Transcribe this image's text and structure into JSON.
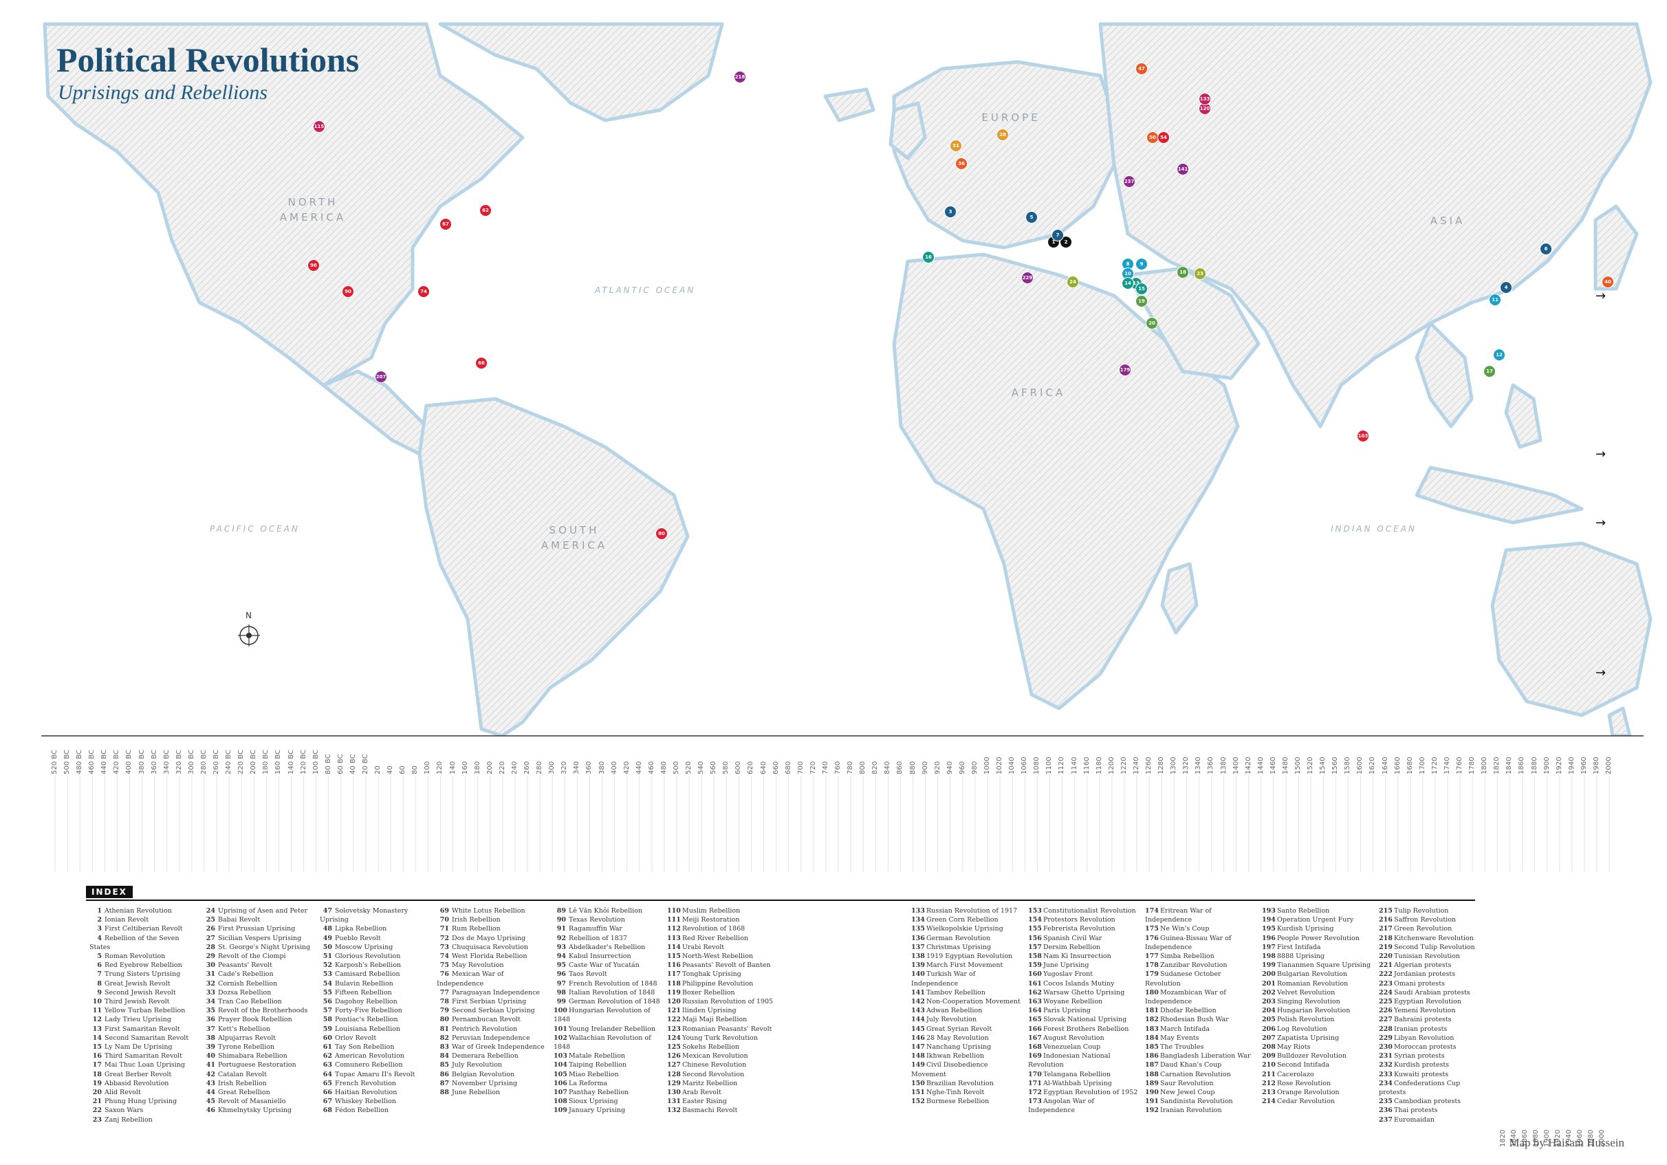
{
  "title": "Political Revolutions",
  "subtitle": "Uprisings and Rebellions",
  "regions": {
    "north_america": "NORTH AMERICA",
    "south_america": "SOUTH AMERICA",
    "europe": "EUROPE",
    "africa": "AFRICA",
    "asia": "ASIA"
  },
  "oceans": {
    "atlantic": "ATLANTIC OCEAN",
    "pacific": "PACIFIC OCEAN",
    "indian": "INDIAN OCEAN"
  },
  "compass_label": "N",
  "index_heading": "INDEX",
  "credit": "Map by Haisam Hussein",
  "era_colors": [
    "#111111",
    "#1b5e8a",
    "#1aa0c7",
    "#159a8c",
    "#5aa043",
    "#97ad2b",
    "#e59a2e",
    "#ea5a24",
    "#de1f33",
    "#c7205d",
    "#8e2a8f"
  ],
  "timeline_ticks": [
    "520 BC",
    "500 BC",
    "480 BC",
    "460 BC",
    "440 BC",
    "420 BC",
    "400 BC",
    "380 BC",
    "360 BC",
    "340 BC",
    "320 BC",
    "300 BC",
    "280 BC",
    "260 BC",
    "240 BC",
    "220 BC",
    "200 BC",
    "180 BC",
    "160 BC",
    "140 BC",
    "120 BC",
    "100 BC",
    "80 BC",
    "60 BC",
    "40 BC",
    "20 BC",
    "20",
    "40",
    "60",
    "80",
    "100",
    "120",
    "140",
    "160",
    "180",
    "200",
    "220",
    "240",
    "260",
    "280",
    "300",
    "320",
    "340",
    "360",
    "380",
    "400",
    "420",
    "440",
    "460",
    "480",
    "500",
    "520",
    "540",
    "560",
    "580",
    "600",
    "620",
    "640",
    "660",
    "680",
    "700",
    "720",
    "740",
    "760",
    "780",
    "800",
    "820",
    "840",
    "860",
    "880",
    "900",
    "920",
    "940",
    "960",
    "980",
    "1000",
    "1020",
    "1040",
    "1060",
    "1080",
    "1100",
    "1120",
    "1140",
    "1160",
    "1180",
    "1200",
    "1220",
    "1240",
    "1260",
    "1280",
    "1300",
    "1320",
    "1340",
    "1360",
    "1380",
    "1400",
    "1420",
    "1440",
    "1460",
    "1480",
    "1500",
    "1520",
    "1540",
    "1560",
    "1580",
    "1600",
    "1620",
    "1640",
    "1660",
    "1680",
    "1700",
    "1720",
    "1740",
    "1760",
    "1780",
    "1800",
    "1820",
    "1840",
    "1860",
    "1880",
    "1900",
    "1920",
    "1940",
    "1960",
    "1980",
    "2000"
  ],
  "timeline_bottom_ticks": [
    "1820",
    "1840",
    "1860",
    "1880",
    "1900",
    "1920",
    "1940",
    "1960",
    "1980",
    "2000"
  ],
  "markers": [
    {
      "n": "1",
      "era": 0
    },
    {
      "n": "2",
      "era": 0
    },
    {
      "n": "3",
      "era": 1
    },
    {
      "n": "4",
      "era": 1
    },
    {
      "n": "5",
      "era": 1
    },
    {
      "n": "6",
      "era": 1
    },
    {
      "n": "7",
      "era": 1
    },
    {
      "n": "8",
      "era": 2
    },
    {
      "n": "9",
      "era": 2
    },
    {
      "n": "10",
      "era": 2
    },
    {
      "n": "11",
      "era": 2
    },
    {
      "n": "12",
      "era": 2
    },
    {
      "n": "13",
      "era": 3
    },
    {
      "n": "14",
      "era": 3
    },
    {
      "n": "15",
      "era": 3
    },
    {
      "n": "16",
      "era": 3
    },
    {
      "n": "17",
      "era": 4
    },
    {
      "n": "18",
      "era": 4
    },
    {
      "n": "19",
      "era": 4
    },
    {
      "n": "20",
      "era": 4
    },
    {
      "n": "23",
      "era": 5
    },
    {
      "n": "24",
      "era": 5
    },
    {
      "n": "28",
      "era": 6
    },
    {
      "n": "31",
      "era": 6
    },
    {
      "n": "36",
      "era": 7
    },
    {
      "n": "40",
      "era": 7
    },
    {
      "n": "47",
      "era": 7
    },
    {
      "n": "50",
      "era": 7
    },
    {
      "n": "54",
      "era": 8
    },
    {
      "n": "62",
      "era": 8
    },
    {
      "n": "66",
      "era": 8
    },
    {
      "n": "67",
      "era": 8
    },
    {
      "n": "74",
      "era": 8
    },
    {
      "n": "80",
      "era": 8
    },
    {
      "n": "90",
      "era": 8
    },
    {
      "n": "96",
      "era": 8
    },
    {
      "n": "103",
      "era": 8
    },
    {
      "n": "115",
      "era": 9
    },
    {
      "n": "120",
      "era": 9
    },
    {
      "n": "133",
      "era": 9
    },
    {
      "n": "141",
      "era": 10
    },
    {
      "n": "179",
      "era": 10
    },
    {
      "n": "207",
      "era": 10
    },
    {
      "n": "218",
      "era": 10
    },
    {
      "n": "229",
      "era": 10
    },
    {
      "n": "237",
      "era": 10
    }
  ],
  "index_columns": [
    [
      [
        "1",
        "Athenian Revolution"
      ],
      [
        "2",
        "Ionian Revolt"
      ],
      [
        "3",
        "First Celtiberian Revolt"
      ],
      [
        "4",
        "Rebellion of the Seven States"
      ],
      [
        "5",
        "Roman Revolution"
      ],
      [
        "6",
        "Red Eyebrow Rebellion"
      ],
      [
        "7",
        "Trung Sisters Uprising"
      ],
      [
        "8",
        "Great Jewish Revolt"
      ],
      [
        "9",
        "Second Jewish Revolt"
      ],
      [
        "10",
        "Third Jewish Revolt"
      ],
      [
        "11",
        "Yellow Turban Rebellion"
      ],
      [
        "12",
        "Lady Trieu Uprising"
      ],
      [
        "13",
        "First Samaritan Revolt"
      ],
      [
        "14",
        "Second Samaritan Revolt"
      ],
      [
        "15",
        "Ly Nam De Uprising"
      ],
      [
        "16",
        "Third Samaritan Revolt"
      ],
      [
        "17",
        "Mai Thuc Loan Uprising"
      ],
      [
        "18",
        "Great Berber Revolt"
      ],
      [
        "19",
        "Abbasid Revolution"
      ],
      [
        "20",
        "Alid Revolt"
      ],
      [
        "21",
        "Phung Hung Uprising"
      ],
      [
        "22",
        "Saxon Wars"
      ],
      [
        "23",
        "Zanj Rebellion"
      ]
    ],
    [
      [
        "24",
        "Uprising of Asen and Peter"
      ],
      [
        "25",
        "Babai Revolt"
      ],
      [
        "26",
        "First Prussian Uprising"
      ],
      [
        "27",
        "Sicilian Vespers Uprising"
      ],
      [
        "28",
        "St. George's Night Uprising"
      ],
      [
        "29",
        "Revolt of the Ciompi"
      ],
      [
        "30",
        "Peasants' Revolt"
      ],
      [
        "31",
        "Cade's Rebellion"
      ],
      [
        "32",
        "Cornish Rebellion"
      ],
      [
        "33",
        "Dozsa Rebellion"
      ],
      [
        "34",
        "Tran Cao Rebellion"
      ],
      [
        "35",
        "Revolt of the Brotherhoods"
      ],
      [
        "36",
        "Prayer Book Rebellion"
      ],
      [
        "37",
        "Kett's Rebellion"
      ],
      [
        "38",
        "Alpujarras Revolt"
      ],
      [
        "39",
        "Tyrone Rebellion"
      ],
      [
        "40",
        "Shimabara Rebellion"
      ],
      [
        "41",
        "Portuguese Restoration"
      ],
      [
        "42",
        "Catalan Revolt"
      ],
      [
        "43",
        "Irish Rebellion"
      ],
      [
        "44",
        "Great Rebellion"
      ],
      [
        "45",
        "Revolt of Masaniello"
      ],
      [
        "46",
        "Khmelnytsky Uprising"
      ]
    ],
    [
      [
        "47",
        "Solovetsky Monastery Uprising"
      ],
      [
        "48",
        "Lipka Rebellion"
      ],
      [
        "49",
        "Pueblo Revolt"
      ],
      [
        "50",
        "Moscow Uprising"
      ],
      [
        "51",
        "Glorious Revolution"
      ],
      [
        "52",
        "Karposh's Rebellion"
      ],
      [
        "53",
        "Camisard Rebellion"
      ],
      [
        "54",
        "Bulavin Rebellion"
      ],
      [
        "55",
        "Fifteen Rebellion"
      ],
      [
        "56",
        "Dagohoy Rebellion"
      ],
      [
        "57",
        "Forty-Five Rebellion"
      ],
      [
        "58",
        "Pontiac's Rebellion"
      ],
      [
        "59",
        "Louisiana Rebellion"
      ],
      [
        "60",
        "Orlov Revolt"
      ],
      [
        "61",
        "Tay Son Rebellion"
      ],
      [
        "62",
        "American Revolution"
      ],
      [
        "63",
        "Comunero Rebellion"
      ],
      [
        "64",
        "Tupac Amaru II's Revolt"
      ],
      [
        "65",
        "French Revolution"
      ],
      [
        "66",
        "Haitian Revolution"
      ],
      [
        "67",
        "Whiskey Rebellion"
      ],
      [
        "68",
        "Fédon Rebellion"
      ]
    ],
    [
      [
        "69",
        "White Lotus Rebellion"
      ],
      [
        "70",
        "Irish Rebellion"
      ],
      [
        "71",
        "Rum Rebellion"
      ],
      [
        "72",
        "Dos de Mayo Uprising"
      ],
      [
        "73",
        "Chuquisaca Revolution"
      ],
      [
        "74",
        "West Florida Rebellion"
      ],
      [
        "75",
        "May Revolution"
      ],
      [
        "76",
        "Mexican War of Independence"
      ],
      [
        "77",
        "Paraguayan Independence"
      ],
      [
        "78",
        "First Serbian Uprising"
      ],
      [
        "79",
        "Second Serbian Uprising"
      ],
      [
        "80",
        "Pernambucan Revolt"
      ],
      [
        "81",
        "Pentrich Revolution"
      ],
      [
        "82",
        "Peruvian Independence"
      ],
      [
        "83",
        "War of Greek Independence"
      ],
      [
        "84",
        "Demerara Rebellion"
      ],
      [
        "85",
        "July Revolution"
      ],
      [
        "86",
        "Belgian Revolution"
      ],
      [
        "87",
        "November Uprising"
      ],
      [
        "88",
        "June Rebellion"
      ]
    ],
    [
      [
        "89",
        "Lê Văn Khôi Rebellion"
      ],
      [
        "90",
        "Texas Revolution"
      ],
      [
        "91",
        "Ragamuffin War"
      ],
      [
        "92",
        "Rebellion of 1837"
      ],
      [
        "93",
        "Abdelkader's Rebellion"
      ],
      [
        "94",
        "Kabul Insurrection"
      ],
      [
        "95",
        "Caste War of Yucatán"
      ],
      [
        "96",
        "Taos Revolt"
      ],
      [
        "97",
        "French Revolution of 1848"
      ],
      [
        "98",
        "Italian Revolution of 1848"
      ],
      [
        "99",
        "German Revolution of 1848"
      ],
      [
        "100",
        "Hungarian Revolution of 1848"
      ],
      [
        "101",
        "Young Irelander Rebellion"
      ],
      [
        "102",
        "Wallachian Revolution of 1848"
      ],
      [
        "103",
        "Matale Rebellion"
      ],
      [
        "104",
        "Taiping Rebellion"
      ],
      [
        "105",
        "Miao Rebellion"
      ],
      [
        "106",
        "La Reforma"
      ],
      [
        "107",
        "Panthay Rebellion"
      ],
      [
        "108",
        "Sioux Uprising"
      ],
      [
        "109",
        "January Uprising"
      ]
    ],
    [
      [
        "110",
        "Muslim Rebellion"
      ],
      [
        "111",
        "Meiji Restoration"
      ],
      [
        "112",
        "Revolution of 1868"
      ],
      [
        "113",
        "Red River Rebellion"
      ],
      [
        "114",
        "Urabi Revolt"
      ],
      [
        "115",
        "North-West Rebellion"
      ],
      [
        "116",
        "Peasants' Revolt of Banten"
      ],
      [
        "117",
        "Tonghak Uprising"
      ],
      [
        "118",
        "Philippine Revolution"
      ],
      [
        "119",
        "Boxer Rebellion"
      ],
      [
        "120",
        "Russian Revolution of 1905"
      ],
      [
        "121",
        "Ilinden Uprising"
      ],
      [
        "122",
        "Maji Maji Rebellion"
      ],
      [
        "123",
        "Romanian Peasants' Revolt"
      ],
      [
        "124",
        "Young Turk Revolution"
      ],
      [
        "125",
        "Sokehs Rebellion"
      ],
      [
        "126",
        "Mexican Revolution"
      ],
      [
        "127",
        "Chinese Revolution"
      ],
      [
        "128",
        "Second Revolution"
      ],
      [
        "129",
        "Maritz Rebellion"
      ],
      [
        "130",
        "Arab Revolt"
      ],
      [
        "131",
        "Easter Rising"
      ],
      [
        "132",
        "Basmachi Revolt"
      ]
    ],
    [
      [
        "133",
        "Russian Revolution of 1917"
      ],
      [
        "134",
        "Green Corn Rebellion"
      ],
      [
        "135",
        "Wielkopolskie Uprising"
      ],
      [
        "136",
        "German Revolution"
      ],
      [
        "137",
        "Christmas Uprising"
      ],
      [
        "138",
        "1919 Egyptian Revolution"
      ],
      [
        "139",
        "March First Movement"
      ],
      [
        "140",
        "Turkish War of Independence"
      ],
      [
        "141",
        "Tambov Rebellion"
      ],
      [
        "142",
        "Non-Cooperation Movement"
      ],
      [
        "143",
        "Adwan Rebellion"
      ],
      [
        "144",
        "July Revolution"
      ],
      [
        "145",
        "Great Syrian Revolt"
      ],
      [
        "146",
        "28 May Revolution"
      ],
      [
        "147",
        "Nanchang Uprising"
      ],
      [
        "148",
        "Ikhwan Rebellion"
      ],
      [
        "149",
        "Civil Disobedience Movement"
      ],
      [
        "150",
        "Brazilian Revolution"
      ],
      [
        "151",
        "Nghe-Tinh Revolt"
      ],
      [
        "152",
        "Burmese Rebellion"
      ]
    ],
    [
      [
        "153",
        "Constitutionalist Revolution"
      ],
      [
        "154",
        "Protestors Revolution"
      ],
      [
        "155",
        "Febrerista Revolution"
      ],
      [
        "156",
        "Spanish Civil War"
      ],
      [
        "157",
        "Dersim Rebellion"
      ],
      [
        "158",
        "Nam Kì Insurrection"
      ],
      [
        "159",
        "June Uprising"
      ],
      [
        "160",
        "Yugoslav Front"
      ],
      [
        "161",
        "Cocos Islands Mutiny"
      ],
      [
        "162",
        "Warsaw Ghetto Uprising"
      ],
      [
        "163",
        "Woyane Rebellion"
      ],
      [
        "164",
        "Paris Uprising"
      ],
      [
        "165",
        "Slovak National Uprising"
      ],
      [
        "166",
        "Forest Brothers Rebellion"
      ],
      [
        "167",
        "August Revolution"
      ],
      [
        "168",
        "Venezuelan Coup"
      ],
      [
        "169",
        "Indonesian National Revolution"
      ],
      [
        "170",
        "Telangana Rebellion"
      ],
      [
        "171",
        "Al-Wathbah Uprising"
      ],
      [
        "172",
        "Egyptian Revolution of 1952"
      ],
      [
        "173",
        "Angolan War of Independence"
      ]
    ],
    [
      [
        "174",
        "Eritrean War of Independence"
      ],
      [
        "175",
        "Ne Win's Coup"
      ],
      [
        "176",
        "Guinea-Bissau War of Independence"
      ],
      [
        "177",
        "Simba Rebellion"
      ],
      [
        "178",
        "Zanzibar Revolution"
      ],
      [
        "179",
        "Sudanese October Revolution"
      ],
      [
        "180",
        "Mozambican War of Independence"
      ],
      [
        "181",
        "Dhofar Rebellion"
      ],
      [
        "182",
        "Rhodesian Bush War"
      ],
      [
        "183",
        "March Intifada"
      ],
      [
        "184",
        "May Events"
      ],
      [
        "185",
        "The Troubles"
      ],
      [
        "186",
        "Bangladesh Liberation War"
      ],
      [
        "187",
        "Daud Khan's Coup"
      ],
      [
        "188",
        "Carnation Revolution"
      ],
      [
        "189",
        "Saur Revolution"
      ],
      [
        "190",
        "New Jewel Coup"
      ],
      [
        "191",
        "Sandinista Revolution"
      ],
      [
        "192",
        "Iranian Revolution"
      ]
    ],
    [
      [
        "193",
        "Santo Rebellion"
      ],
      [
        "194",
        "Operation Urgent Fury"
      ],
      [
        "195",
        "Kurdish Uprising"
      ],
      [
        "196",
        "People Power Revolution"
      ],
      [
        "197",
        "First Intifada"
      ],
      [
        "198",
        "8888 Uprising"
      ],
      [
        "199",
        "Tiananmen Square Uprising"
      ],
      [
        "200",
        "Bulgarian Revolution"
      ],
      [
        "201",
        "Romanian Revolution"
      ],
      [
        "202",
        "Velvet Revolution"
      ],
      [
        "203",
        "Singing Revolution"
      ],
      [
        "204",
        "Hungarian Revolution"
      ],
      [
        "205",
        "Polish Revolution"
      ],
      [
        "206",
        "Log Revolution"
      ],
      [
        "207",
        "Zapatista Uprising"
      ],
      [
        "208",
        "May Riots"
      ],
      [
        "209",
        "Bulldozer Revolution"
      ],
      [
        "210",
        "Second Intifada"
      ],
      [
        "211",
        "Cacerolazo"
      ],
      [
        "212",
        "Rose Revolution"
      ],
      [
        "213",
        "Orange Revolution"
      ],
      [
        "214",
        "Cedar Revolution"
      ]
    ],
    [
      [
        "215",
        "Tulip Revolution"
      ],
      [
        "216",
        "Saffron Revolution"
      ],
      [
        "217",
        "Green Revolution"
      ],
      [
        "218",
        "Kitchenware Revolution"
      ],
      [
        "219",
        "Second Tulip Revolution"
      ],
      [
        "220",
        "Tunisian Revolution"
      ],
      [
        "221",
        "Algerian protests"
      ],
      [
        "222",
        "Jordanian protests"
      ],
      [
        "223",
        "Omani protests"
      ],
      [
        "224",
        "Saudi Arabian protests"
      ],
      [
        "225",
        "Egyptian Revolution"
      ],
      [
        "226",
        "Yemeni Revolution"
      ],
      [
        "227",
        "Bahraini protests"
      ],
      [
        "228",
        "Iranian protests"
      ],
      [
        "229",
        "Libyan Revolution"
      ],
      [
        "230",
        "Moroccan protests"
      ],
      [
        "231",
        "Syrian protests"
      ],
      [
        "232",
        "Kurdish protests"
      ],
      [
        "233",
        "Kuwaiti protests"
      ],
      [
        "234",
        "Confederations Cup protests"
      ],
      [
        "235",
        "Cambodian protests"
      ],
      [
        "236",
        "Thai protests"
      ],
      [
        "237",
        "Euromaidan"
      ]
    ]
  ]
}
